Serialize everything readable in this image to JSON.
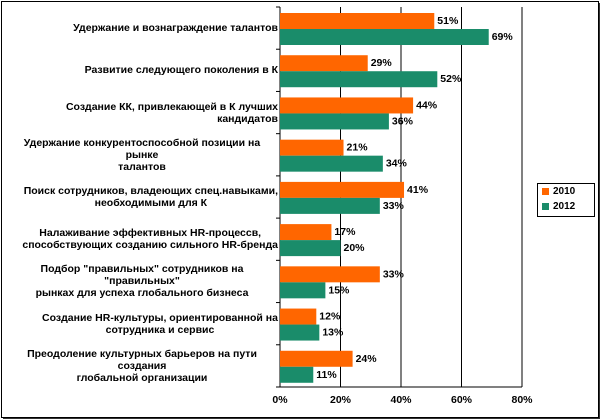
{
  "chart_data": {
    "type": "bar",
    "orientation": "horizontal",
    "categories": [
      "Удержание и вознаграждение талантов",
      "Развитие следующего поколения в К",
      "Создание КК, привлекающей в К лучших кандидатов",
      "Удержание конкурентоспособной позиции на рынке талантов",
      "Поиск сотрудников, владеющих спец.навыками, необходимыми для К",
      "Налаживание эффективных HR-процессов, способствующих созданию сильного HR-бренда",
      "Подбор \"правильных\" сотрудников на \"правильных\" рынках для успеха глобального бизнеса",
      "Создание HR-культуры, ориентированной на сотрудника и сервис",
      "Преодоление культурных барьеров на пути создания глобальной организации"
    ],
    "category_lines": [
      [
        "Удержание и вознаграждение талантов"
      ],
      [
        "Развитие следующего поколения в К"
      ],
      [
        "Создание КК, привлекающей в К лучших кандидатов"
      ],
      [
        "Удержание конкурентоспособной позиции на рынке",
        "талантов"
      ],
      [
        "Поиск сотрудников, владеющих спец.навыками,",
        "необходимыми для К"
      ],
      [
        "Налаживание эффективных HR-процессв,",
        "способствующих созданию сильного HR-бренда"
      ],
      [
        "Подбор \"правильных\" сотрудников на \"правильных\"",
        "рынках для успеха глобального бизнеса"
      ],
      [
        "Создание HR-культуры, ориентированной на",
        "сотрудника и сервис"
      ],
      [
        "Преодоление культурных барьеров на пути создания",
        "глобальной организации"
      ]
    ],
    "series": [
      {
        "name": "2010",
        "color": "#ff6600",
        "values": [
          51,
          29,
          44,
          21,
          41,
          17,
          33,
          12,
          24
        ]
      },
      {
        "name": "2012",
        "color": "#1a8c6a",
        "values": [
          69,
          52,
          36,
          34,
          33,
          20,
          15,
          13,
          11
        ]
      }
    ],
    "xlim": [
      0,
      80
    ],
    "x_ticks": [
      0,
      20,
      40,
      60,
      80
    ],
    "tick_suffix": "%",
    "value_suffix": "%",
    "grid": true,
    "legend_position": "right"
  }
}
